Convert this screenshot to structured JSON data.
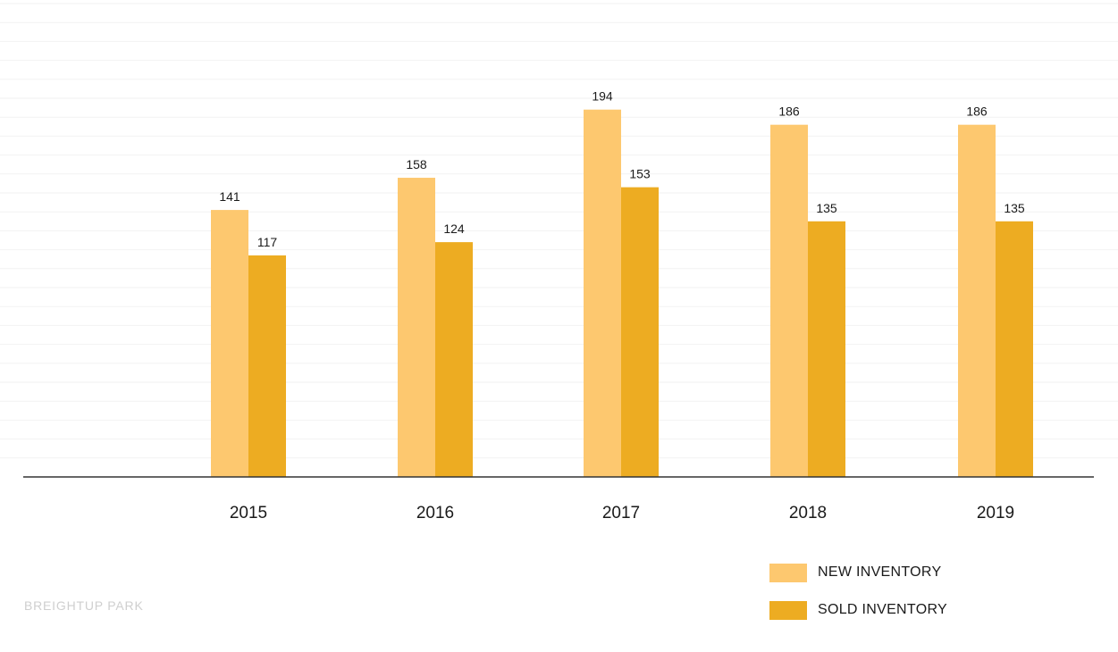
{
  "chart_data": {
    "type": "bar",
    "categories": [
      "2015",
      "2016",
      "2017",
      "2018",
      "2019"
    ],
    "series": [
      {
        "name": "NEW INVENTORY",
        "values": [
          141,
          158,
          194,
          186,
          186
        ],
        "color": "#fdc86f"
      },
      {
        "name": "SOLD INVENTORY",
        "values": [
          117,
          124,
          153,
          135,
          135
        ],
        "color": "#edac22"
      }
    ],
    "ylim": [
      0,
      250
    ],
    "grid": true,
    "legend_position": "bottom-right"
  },
  "watermark": "BREIGHTUP PARK",
  "colors": {
    "axis": "#333333",
    "grid": "#f2f2f2"
  }
}
